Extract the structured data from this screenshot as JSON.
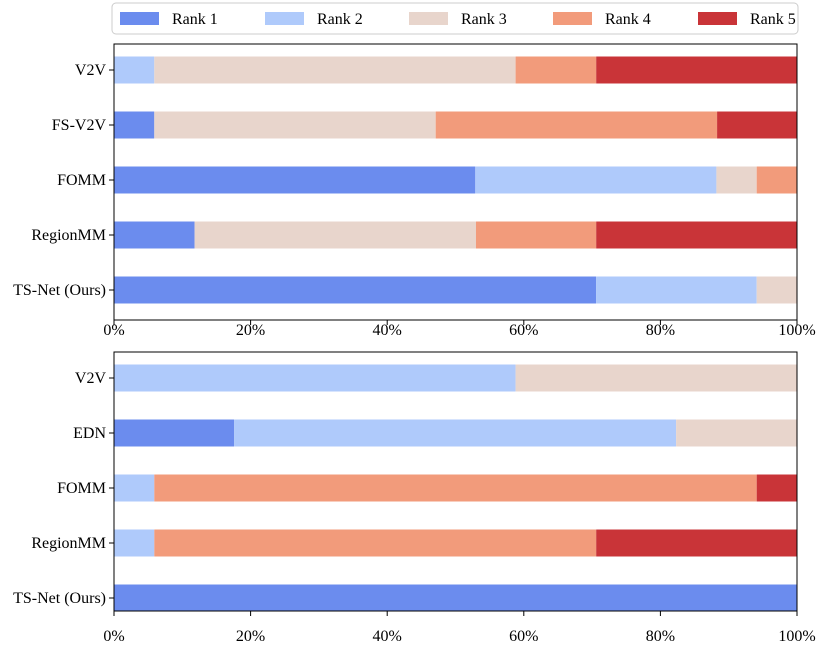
{
  "legend": {
    "placement": "top-center",
    "items": [
      {
        "label": "Rank 1",
        "color": "#6b8cee"
      },
      {
        "label": "Rank 2",
        "color": "#afcafb"
      },
      {
        "label": "Rank 3",
        "color": "#e8d5cc"
      },
      {
        "label": "Rank 4",
        "color": "#f29b7b"
      },
      {
        "label": "Rank 5",
        "color": "#c93438"
      }
    ]
  },
  "chart_data": [
    {
      "type": "bar",
      "orientation": "horizontal-stacked",
      "categories": [
        "V2V",
        "FS-V2V",
        "FOMM",
        "RegionMM",
        "TS-Net (Ours)"
      ],
      "series": [
        {
          "name": "Rank 1",
          "values": [
            0,
            5.9,
            52.9,
            11.8,
            70.6
          ]
        },
        {
          "name": "Rank 2",
          "values": [
            5.9,
            0,
            35.3,
            0,
            23.5
          ]
        },
        {
          "name": "Rank 3",
          "values": [
            52.9,
            41.2,
            5.9,
            41.2,
            5.9
          ]
        },
        {
          "name": "Rank 4",
          "values": [
            11.8,
            41.2,
            5.9,
            17.6,
            0
          ]
        },
        {
          "name": "Rank 5",
          "values": [
            29.4,
            11.7,
            0,
            29.4,
            0
          ]
        }
      ],
      "xlim": [
        0,
        100
      ],
      "xticks": [
        "0%",
        "20%",
        "40%",
        "60%",
        "80%",
        "100%"
      ],
      "grid": false
    },
    {
      "type": "bar",
      "orientation": "horizontal-stacked",
      "categories": [
        "V2V",
        "EDN",
        "FOMM",
        "RegionMM",
        "TS-Net (Ours)"
      ],
      "series": [
        {
          "name": "Rank 1",
          "values": [
            0,
            17.6,
            0,
            0,
            100
          ]
        },
        {
          "name": "Rank 2",
          "values": [
            58.8,
            64.7,
            5.9,
            5.9,
            0
          ]
        },
        {
          "name": "Rank 3",
          "values": [
            41.2,
            17.7,
            0,
            0,
            0
          ]
        },
        {
          "name": "Rank 4",
          "values": [
            0,
            0,
            88.2,
            64.7,
            0
          ]
        },
        {
          "name": "Rank 5",
          "values": [
            0,
            0,
            5.9,
            29.4,
            0
          ]
        }
      ],
      "xlim": [
        0,
        100
      ],
      "xticks": [
        "0%",
        "20%",
        "40%",
        "60%",
        "80%",
        "100%"
      ],
      "grid": false
    }
  ]
}
